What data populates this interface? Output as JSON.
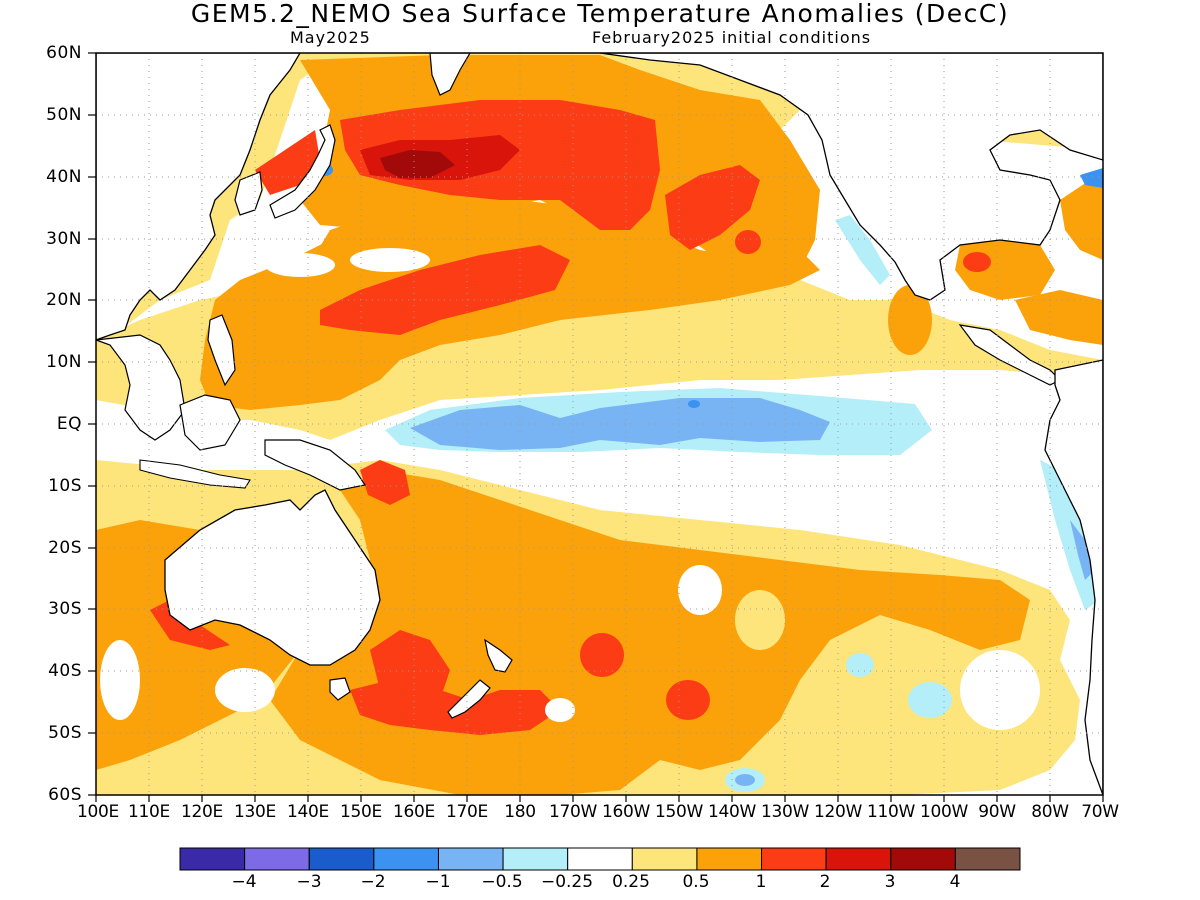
{
  "title": "GEM5.2_NEMO Sea Surface Temperature Anomalies (DecC)",
  "subtitle_left": "May2025",
  "subtitle_right": "February2025 initial conditions",
  "lat_labels": [
    "60N",
    "50N",
    "40N",
    "30N",
    "20N",
    "10N",
    "EQ",
    "10S",
    "20S",
    "30S",
    "40S",
    "50S",
    "60S"
  ],
  "lon_labels": [
    "100E",
    "110E",
    "120E",
    "130E",
    "140E",
    "150E",
    "160E",
    "170E",
    "180",
    "170W",
    "160W",
    "150W",
    "140W",
    "130W",
    "120W",
    "110W",
    "100W",
    "90W",
    "80W",
    "70W"
  ],
  "colorbar": {
    "colors": [
      "#3a2aa8",
      "#7d6ae6",
      "#1a5ccc",
      "#3c92f0",
      "#78b4f4",
      "#b4eef8",
      "#ffffff",
      "#fde57c",
      "#fba20a",
      "#fb3c14",
      "#d9140a",
      "#a20a0a",
      "#7a5244"
    ],
    "labels": [
      "−4",
      "−3",
      "−2",
      "−1",
      "−0.5",
      "−0.25",
      "0.25",
      "0.5",
      "1",
      "2",
      "3",
      "4"
    ]
  },
  "colors": {
    "ocean_neutral": "#ffffff",
    "weak_warm": "#fde57c",
    "warm": "#fba20a",
    "strong_warm": "#fb3c14",
    "very_strong_warm": "#d9140a",
    "extreme_warm": "#a20a0a",
    "weak_cool": "#b4eef8",
    "cool": "#78b4f4",
    "strong_cool": "#3c92f0",
    "coastline": "#000000"
  }
}
